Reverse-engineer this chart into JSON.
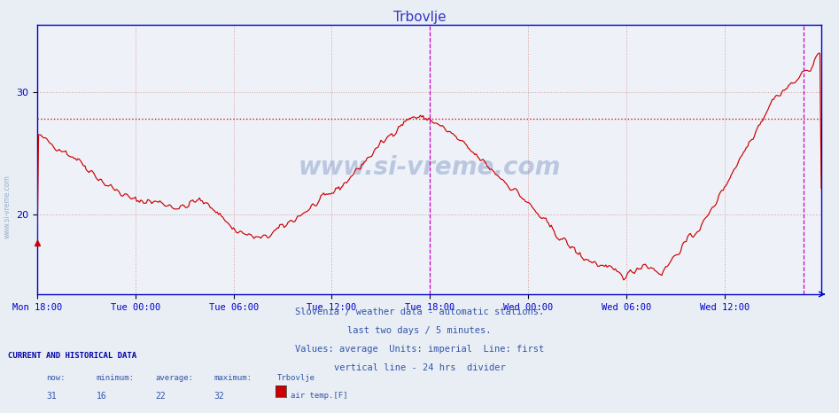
{
  "title": "Trbovlje",
  "title_color": "#3333cc",
  "bg_color": "#e8eef4",
  "plot_bg_color": "#eef2f8",
  "line_color": "#cc0000",
  "grid_color": "#ddaaaa",
  "axis_color": "#0000cc",
  "yticks": [
    20,
    30
  ],
  "ymin": 13.5,
  "ymax": 35.5,
  "xtick_labels": [
    "Mon 18:00",
    "Tue 00:00",
    "Tue 06:00",
    "Tue 12:00",
    "Tue 18:00",
    "Wed 00:00",
    "Wed 06:00",
    "Wed 12:00"
  ],
  "now": 31,
  "minimum": 16,
  "average": 22,
  "maximum": 32,
  "avg_line_y": 27.8,
  "vline1": 288,
  "vline2": 562,
  "watermark": "www.si-vreme.com",
  "footer_line1": "Slovenia / weather data - automatic stations.",
  "footer_line2": "last two days / 5 minutes.",
  "footer_line3": "Values: average  Units: imperial  Line: first",
  "footer_line4": "vertical line - 24 hrs  divider",
  "current_label": "CURRENT AND HISTORICAL DATA",
  "legend_label": "air temp.[F]",
  "legend_color": "#cc0000",
  "sidebar_text": "www.si-vreme.com",
  "num_points": 576
}
